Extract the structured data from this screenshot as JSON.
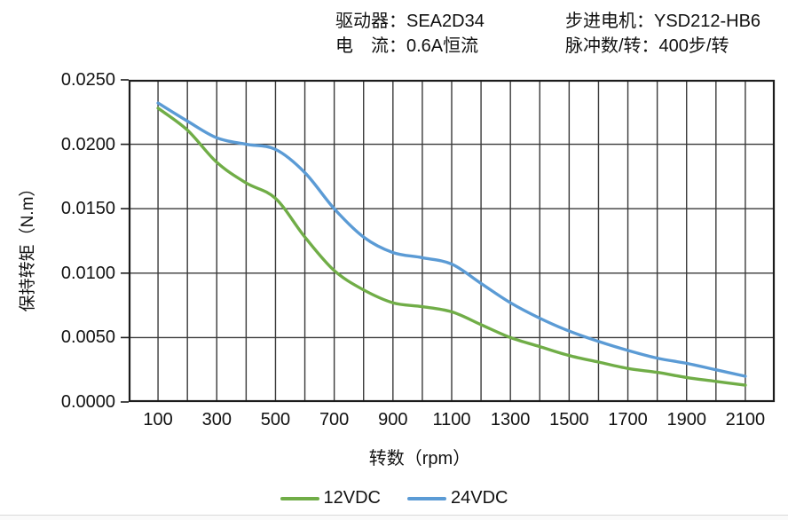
{
  "header": {
    "driver": "驱动器：SEA2D34",
    "current": "电　流：0.6A恒流",
    "motor": "步进电机：YSD212-HB6",
    "pulses_per_rev": "脉冲数/转：400步/转"
  },
  "chart_data": {
    "type": "line",
    "title": "",
    "xlabel": "转数（rpm）",
    "ylabel": "保持转矩（N.m）",
    "xlim": [
      0,
      2200
    ],
    "ylim": [
      0,
      0.025
    ],
    "x_grid_step": 100,
    "y_grid_step": 0.005,
    "grid": true,
    "legend_position": "bottom",
    "x_tick_values": [
      100,
      300,
      500,
      700,
      900,
      1100,
      1300,
      1500,
      1700,
      1900,
      2100
    ],
    "x_tick_labels": [
      "100",
      "300",
      "500",
      "700",
      "900",
      "1100",
      "1300",
      "1500",
      "1700",
      "1900",
      "2100"
    ],
    "y_tick_values": [
      0.025,
      0.02,
      0.015,
      0.01,
      0.005,
      0
    ],
    "y_tick_labels": [
      "0.0250",
      "0.0200",
      "0.0150",
      "0.0100",
      "0.0050",
      "0.0000"
    ],
    "x": [
      100,
      200,
      300,
      400,
      500,
      600,
      700,
      800,
      900,
      1000,
      1100,
      1200,
      1300,
      1400,
      1500,
      1600,
      1700,
      1800,
      1900,
      2000,
      2100
    ],
    "series": [
      {
        "name": "12VDC",
        "color": "#70AD47",
        "values": [
          0.0228,
          0.0211,
          0.0186,
          0.017,
          0.0158,
          0.0128,
          0.0102,
          0.0087,
          0.0077,
          0.0074,
          0.007,
          0.006,
          0.005,
          0.0043,
          0.0036,
          0.0031,
          0.0026,
          0.0023,
          0.0019,
          0.0016,
          0.0013
        ]
      },
      {
        "name": "24VDC",
        "color": "#5B9BD5",
        "values": [
          0.0232,
          0.0218,
          0.0205,
          0.02,
          0.0196,
          0.0178,
          0.015,
          0.0128,
          0.0116,
          0.0112,
          0.0107,
          0.0092,
          0.0077,
          0.0065,
          0.0055,
          0.0047,
          0.004,
          0.0034,
          0.003,
          0.0025,
          0.002
        ]
      }
    ],
    "axis_color": "#1c1c1c",
    "grid_color": "#3a3a3a"
  }
}
